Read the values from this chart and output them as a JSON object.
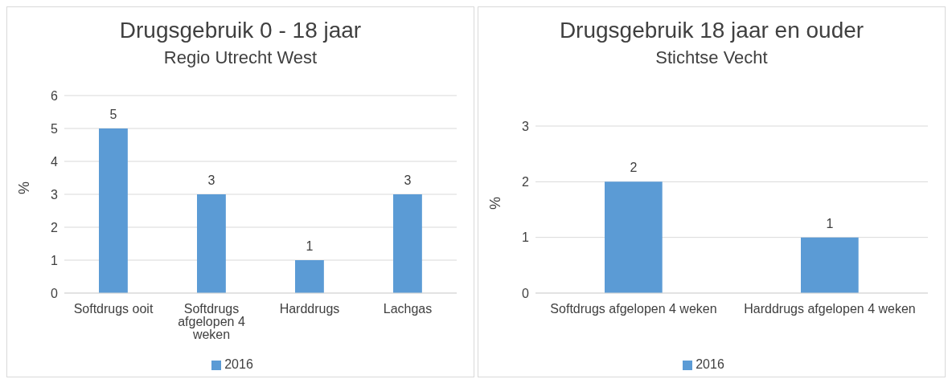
{
  "chart_data": [
    {
      "type": "bar",
      "title": "Drugsgebruik 0 - 18 jaar",
      "subtitle": "Regio Utrecht West",
      "ylabel": "%",
      "categories": [
        "Softdrugs ooit",
        "Softdrugs afgelopen 4 weken",
        "Harddrugs",
        "Lachgas"
      ],
      "series": [
        {
          "name": "2016",
          "color": "#5b9bd5",
          "values": [
            5,
            3,
            1,
            3
          ]
        }
      ],
      "ylim": [
        0,
        6
      ],
      "yticks": [
        0,
        1,
        2,
        3,
        4,
        5,
        6
      ],
      "grid": "y",
      "legend": "bottom",
      "data_labels": true
    },
    {
      "type": "bar",
      "title": "Drugsgebruik 18 jaar en ouder",
      "subtitle": "Stichtse Vecht",
      "ylabel": "%",
      "categories": [
        "Softdrugs afgelopen 4 weken",
        "Harddrugs afgelopen 4 weken"
      ],
      "series": [
        {
          "name": "2016",
          "color": "#5b9bd5",
          "values": [
            2,
            1
          ]
        }
      ],
      "ylim": [
        0,
        3
      ],
      "yticks": [
        0,
        1,
        2,
        3
      ],
      "grid": "y",
      "legend": "bottom",
      "data_labels": true
    }
  ]
}
